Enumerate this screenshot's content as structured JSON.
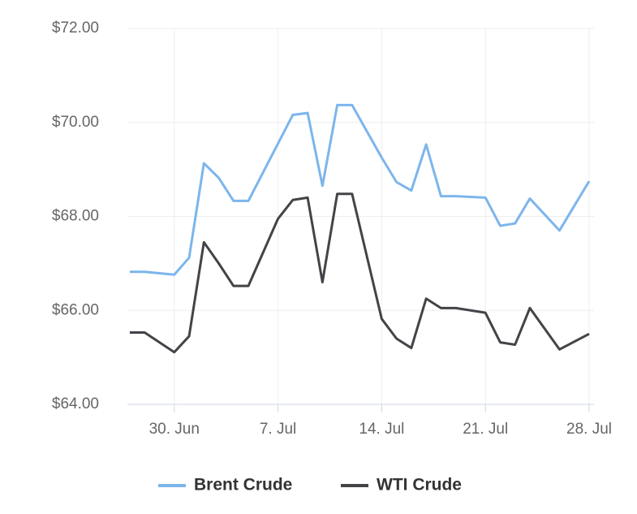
{
  "chart_data": {
    "type": "line",
    "x": [
      "06-27",
      "06-28",
      "06-30",
      "07-01",
      "07-02",
      "07-03",
      "07-04",
      "07-05",
      "07-07",
      "07-08",
      "07-09",
      "07-10",
      "07-11",
      "07-12",
      "07-14",
      "07-15",
      "07-16",
      "07-17",
      "07-18",
      "07-19",
      "07-21",
      "07-22",
      "07-23",
      "07-24",
      "07-26",
      "07-28"
    ],
    "series": [
      {
        "name": "Brent Crude",
        "color": "#7cb5ec",
        "values": [
          66.82,
          66.82,
          66.76,
          67.12,
          69.13,
          68.82,
          68.33,
          68.33,
          69.55,
          70.16,
          70.2,
          68.65,
          70.37,
          70.37,
          69.25,
          68.73,
          68.55,
          69.53,
          68.43,
          68.43,
          68.4,
          67.8,
          67.85,
          68.38,
          67.7,
          68.75
        ]
      },
      {
        "name": "WTI Crude",
        "color": "#434348",
        "values": [
          65.53,
          65.53,
          65.11,
          65.45,
          67.45,
          67.0,
          66.52,
          66.52,
          67.95,
          68.35,
          68.4,
          66.6,
          68.48,
          68.48,
          65.82,
          65.4,
          65.2,
          66.25,
          66.05,
          66.05,
          65.95,
          65.32,
          65.27,
          66.05,
          65.17,
          65.5
        ]
      }
    ],
    "xlim": [
      "06-27",
      "07-28"
    ],
    "xticks": [
      {
        "value": "06-30",
        "label": "30. Jun"
      },
      {
        "value": "07-07",
        "label": "7. Jul"
      },
      {
        "value": "07-14",
        "label": "14. Jul"
      },
      {
        "value": "07-21",
        "label": "21. Jul"
      },
      {
        "value": "07-28",
        "label": "28. Jul"
      }
    ],
    "ylim": [
      64,
      72
    ],
    "yticks": [
      {
        "value": 64,
        "label": "$64.00"
      },
      {
        "value": 66,
        "label": "$66.00"
      },
      {
        "value": 68,
        "label": "$68.00"
      },
      {
        "value": 70,
        "label": "$70.00"
      },
      {
        "value": 72,
        "label": "$72.00"
      }
    ],
    "grid": true,
    "legend": "bottom"
  }
}
